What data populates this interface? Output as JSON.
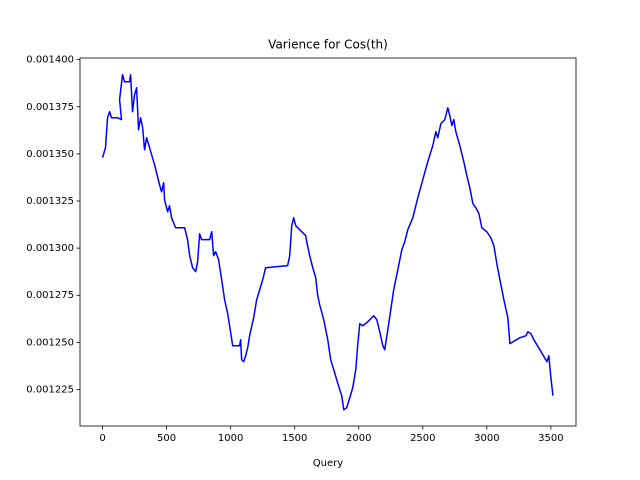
{
  "chart_data": {
    "type": "line",
    "title": "Varience for Cos(th)",
    "x_label": "Query",
    "xlim": [
      -176,
      3696
    ],
    "xticks": [
      0,
      500,
      1000,
      1500,
      2000,
      2500,
      3000,
      3500
    ],
    "ylim": [
      0.0012056,
      0.0014009
    ],
    "yticks": [
      0.001225,
      {
        "value": 0.00125,
        "label": "0.001250"
      },
      0.001275,
      {
        "value": 0.0013,
        "label": "0.001300"
      },
      0.001325,
      {
        "value": 0.00135,
        "label": "0.001350"
      },
      0.001375,
      {
        "value": 0.0014,
        "label": "0.001400"
      }
    ],
    "grid": false,
    "series": [
      {
        "color": "#0000ff",
        "x": [
          0,
          23,
          39,
          55,
          70,
          102,
          117,
          148,
          133,
          156,
          172,
          211,
          219,
          234,
          250,
          266,
          281,
          297,
          313,
          328,
          344,
          367,
          406,
          445,
          461,
          477,
          484,
          508,
          523,
          539,
          570,
          641,
          664,
          680,
          703,
          727,
          742,
          758,
          773,
          836,
          852,
          867,
          883,
          906,
          930,
          953,
          977,
          992,
          1016,
          1070,
          1078,
          1086,
          1102,
          1117,
          1133,
          1148,
          1180,
          1203,
          1227,
          1250,
          1273,
          1445,
          1461,
          1477,
          1492,
          1508,
          1586,
          1594,
          1617,
          1641,
          1664,
          1680,
          1695,
          1727,
          1758,
          1781,
          1805,
          1828,
          1852,
          1867,
          1883,
          1906,
          1930,
          1953,
          1977,
          1992,
          2008,
          2031,
          2070,
          2117,
          2141,
          2164,
          2188,
          2203,
          2227,
          2250,
          2273,
          2305,
          2336,
          2359,
          2383,
          2422,
          2461,
          2500,
          2539,
          2578,
          2602,
          2617,
          2641,
          2672,
          2695,
          2711,
          2727,
          2742,
          2758,
          2789,
          2820,
          2844,
          2867,
          2891,
          2914,
          2938,
          2961,
          3000,
          3031,
          3055,
          3078,
          3102,
          3133,
          3164,
          3180,
          3258,
          3305,
          3320,
          3344,
          3367,
          3414,
          3469,
          3484,
          3500,
          3516
        ],
        "values": [
          0.001348,
          0.0013533,
          0.0013692,
          0.0013724,
          0.0013692,
          0.0013692,
          0.0013692,
          0.0013682,
          0.0013788,
          0.001392,
          0.0013883,
          0.0013883,
          0.001392,
          0.0013724,
          0.0013814,
          0.0013851,
          0.0013628,
          0.0013692,
          0.0013639,
          0.0013522,
          0.0013586,
          0.0013533,
          0.0013443,
          0.0013336,
          0.0013299,
          0.0013347,
          0.0013257,
          0.0013193,
          0.0013225,
          0.0013161,
          0.0013108,
          0.0013108,
          0.0013045,
          0.001296,
          0.0012896,
          0.0012875,
          0.0012928,
          0.0013076,
          0.0013045,
          0.0013045,
          0.0013087,
          0.001296,
          0.0012981,
          0.0012938,
          0.0012832,
          0.0012726,
          0.0012652,
          0.0012588,
          0.0012482,
          0.0012482,
          0.0012514,
          0.0012408,
          0.0012397,
          0.0012429,
          0.0012471,
          0.0012535,
          0.0012631,
          0.0012726,
          0.0012779,
          0.0012832,
          0.0012896,
          0.0012907,
          0.001296,
          0.0013119,
          0.0013161,
          0.0013119,
          0.0013066,
          0.0013034,
          0.001296,
          0.0012896,
          0.0012843,
          0.0012747,
          0.00127,
          0.001262,
          0.0012514,
          0.0012408,
          0.0012355,
          0.0012301,
          0.0012248,
          0.0012217,
          0.0012142,
          0.0012153,
          0.0012206,
          0.0012259,
          0.0012355,
          0.0012487,
          0.0012599,
          0.0012588,
          0.0012609,
          0.0012641,
          0.001262,
          0.0012556,
          0.0012482,
          0.0012461,
          0.0012567,
          0.0012673,
          0.0012779,
          0.0012885,
          0.0012991,
          0.0013034,
          0.0013098,
          0.0013161,
          0.0013267,
          0.0013363,
          0.0013459,
          0.0013544,
          0.0013618,
          0.0013586,
          0.001366,
          0.0013682,
          0.0013745,
          0.0013703,
          0.001365,
          0.0013682,
          0.0013618,
          0.0013544,
          0.0013459,
          0.0013384,
          0.0013321,
          0.0013236,
          0.0013214,
          0.0013183,
          0.0013108,
          0.0013087,
          0.0013055,
          0.0013013,
          0.0012917,
          0.0012832,
          0.0012726,
          0.0012631,
          0.0012493,
          0.0012524,
          0.0012535,
          0.0012556,
          0.0012546,
          0.0012514,
          0.0012461,
          0.0012397,
          0.0012429,
          0.0012312,
          0.0012217
        ]
      }
    ]
  }
}
